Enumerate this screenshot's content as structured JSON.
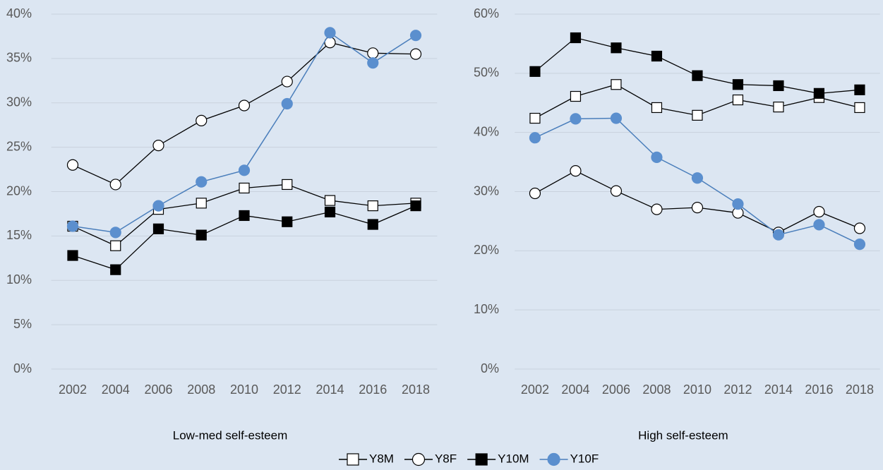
{
  "chart_data": [
    {
      "type": "line",
      "xlabel": "Low-med self-esteem",
      "categories": [
        "2002",
        "2004",
        "2006",
        "2008",
        "2010",
        "2012",
        "2014",
        "2016",
        "2018"
      ],
      "ylim": [
        0,
        40
      ],
      "yticks": [
        {
          "value": 0,
          "label": "0%"
        },
        {
          "value": 5,
          "label": "5%"
        },
        {
          "value": 10,
          "label": "10%"
        },
        {
          "value": 15,
          "label": "15%"
        },
        {
          "value": 20,
          "label": "20%"
        },
        {
          "value": 25,
          "label": "25%"
        },
        {
          "value": 30,
          "label": "30%"
        },
        {
          "value": 35,
          "label": "35%"
        },
        {
          "value": 40,
          "label": "40%"
        }
      ],
      "grid": true,
      "series": [
        {
          "name": "Y8M",
          "color": "#000000",
          "marker": "square",
          "marker_fill": "#ffffff",
          "values": [
            16.1,
            13.9,
            18.0,
            18.7,
            20.4,
            20.8,
            19.0,
            18.4,
            18.7
          ]
        },
        {
          "name": "Y8F",
          "color": "#000000",
          "marker": "circle",
          "marker_fill": "#ffffff",
          "values": [
            23.0,
            20.8,
            25.2,
            28.0,
            29.7,
            32.4,
            36.8,
            35.6,
            35.5
          ]
        },
        {
          "name": "Y10M",
          "color": "#000000",
          "marker": "square",
          "marker_fill": "#000000",
          "values": [
            12.8,
            11.2,
            15.8,
            15.1,
            17.3,
            16.6,
            17.7,
            16.3,
            18.4
          ]
        },
        {
          "name": "Y10F",
          "color": "#4a7ebb",
          "marker": "circle",
          "marker_fill": "#5b8fce",
          "values": [
            16.1,
            15.4,
            18.4,
            21.1,
            22.4,
            29.9,
            37.9,
            34.5,
            37.6
          ]
        }
      ]
    },
    {
      "type": "line",
      "xlabel": "High self-esteem",
      "categories": [
        "2002",
        "2004",
        "2006",
        "2008",
        "2010",
        "2012",
        "2014",
        "2016",
        "2018"
      ],
      "ylim": [
        0,
        60
      ],
      "yticks": [
        {
          "value": 0,
          "label": "0%"
        },
        {
          "value": 10,
          "label": "10%"
        },
        {
          "value": 20,
          "label": "20%"
        },
        {
          "value": 30,
          "label": "30%"
        },
        {
          "value": 40,
          "label": "40%"
        },
        {
          "value": 50,
          "label": "50%"
        },
        {
          "value": 60,
          "label": "60%"
        }
      ],
      "grid": true,
      "series": [
        {
          "name": "Y8M",
          "color": "#000000",
          "marker": "square",
          "marker_fill": "#ffffff",
          "values": [
            42.4,
            46.1,
            48.1,
            44.2,
            42.9,
            45.5,
            44.3,
            45.9,
            44.2
          ]
        },
        {
          "name": "Y8F",
          "color": "#000000",
          "marker": "circle",
          "marker_fill": "#ffffff",
          "values": [
            29.7,
            33.5,
            30.1,
            27.0,
            27.3,
            26.4,
            23.1,
            26.6,
            23.8
          ]
        },
        {
          "name": "Y10M",
          "color": "#000000",
          "marker": "square",
          "marker_fill": "#000000",
          "values": [
            50.3,
            56.0,
            54.3,
            52.9,
            49.6,
            48.1,
            47.9,
            46.6,
            47.2
          ]
        },
        {
          "name": "Y10F",
          "color": "#4a7ebb",
          "marker": "circle",
          "marker_fill": "#5b8fce",
          "values": [
            39.1,
            42.3,
            42.4,
            35.8,
            32.3,
            27.9,
            22.7,
            24.4,
            21.1
          ]
        }
      ]
    }
  ]
}
